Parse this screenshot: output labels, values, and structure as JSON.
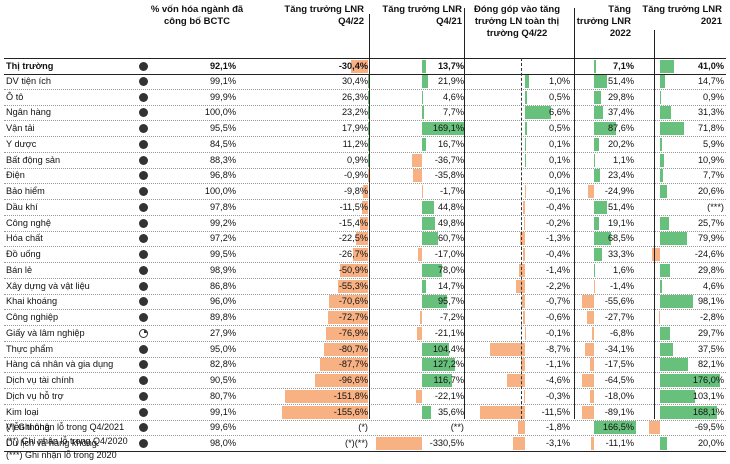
{
  "headers": {
    "market_cap": "% vốn hóa ngành đã công bố BCTC",
    "growth_q4_22": "Tăng trưởng LNR Q4/22",
    "growth_q4_21": "Tăng trưởng LNR Q4/21",
    "contribution": "Đóng góp vào tăng trưởng LN toàn thị trường Q4/22",
    "growth_2022": "Tăng trưởng LNR 2022",
    "growth_2021": "Tăng trưởng LNR 2021"
  },
  "rows": [
    {
      "name": "Thị trường",
      "cap": "92,1%",
      "dot": "full",
      "q422": "-30,4%",
      "q422v": -30.4,
      "q421": "13,7%",
      "q421v": 13.7,
      "contrib": "",
      "contribv": 0,
      "y22": "7,1%",
      "y22v": 7.1,
      "y21": "41,0%",
      "y21v": 41.0
    },
    {
      "name": "DV tiện ích",
      "cap": "99,1%",
      "dot": "full",
      "q422": "30,4%",
      "q422v": 30.4,
      "q421": "21,9%",
      "q421v": 21.9,
      "contrib": "1,0%",
      "contribv": 1.0,
      "y22": "51,4%",
      "y22v": 51.4,
      "y21": "14,7%",
      "y21v": 14.7
    },
    {
      "name": "Ô tô",
      "cap": "99,9%",
      "dot": "full",
      "q422": "26,3%",
      "q422v": 26.3,
      "q421": "4,6%",
      "q421v": 4.6,
      "contrib": "0,5%",
      "contribv": 0.5,
      "y22": "29,8%",
      "y22v": 29.8,
      "y21": "0,9%",
      "y21v": 0.9
    },
    {
      "name": "Ngân hàng",
      "cap": "100,0%",
      "dot": "full",
      "q422": "23,2%",
      "q422v": 23.2,
      "q421": "7,7%",
      "q421v": 7.7,
      "contrib": "6,6%",
      "contribv": 6.6,
      "y22": "37,4%",
      "y22v": 37.4,
      "y21": "31,3%",
      "y21v": 31.3
    },
    {
      "name": "Vận tải",
      "cap": "95,5%",
      "dot": "full",
      "q422": "17,9%",
      "q422v": 17.9,
      "q421": "169,1%",
      "q421v": 169.1,
      "contrib": "0,5%",
      "contribv": 0.5,
      "y22": "87,6%",
      "y22v": 87.6,
      "y21": "71,8%",
      "y21v": 71.8
    },
    {
      "name": "Y dược",
      "cap": "84,5%",
      "dot": "full",
      "q422": "11,2%",
      "q422v": 11.2,
      "q421": "16,7%",
      "q421v": 16.7,
      "contrib": "0,1%",
      "contribv": 0.1,
      "y22": "20,2%",
      "y22v": 20.2,
      "y21": "5,9%",
      "y21v": 5.9
    },
    {
      "name": "Bất động sản",
      "cap": "88,3%",
      "dot": "full",
      "q422": "0,9%",
      "q422v": 0.9,
      "q421": "-36,7%",
      "q421v": -36.7,
      "contrib": "0,1%",
      "contribv": 0.1,
      "y22": "1,1%",
      "y22v": 1.1,
      "y21": "10,9%",
      "y21v": 10.9
    },
    {
      "name": "Điện",
      "cap": "96,8%",
      "dot": "full",
      "q422": "-0,9%",
      "q422v": -0.9,
      "q421": "-35,8%",
      "q421v": -35.8,
      "contrib": "0,0%",
      "contribv": 0,
      "y22": "23,4%",
      "y22v": 23.4,
      "y21": "7,7%",
      "y21v": 7.7
    },
    {
      "name": "Bảo hiểm",
      "cap": "100,0%",
      "dot": "full",
      "q422": "-9,8%",
      "q422v": -9.8,
      "q421": "-1,7%",
      "q421v": -1.7,
      "contrib": "-0,1%",
      "contribv": -0.1,
      "y22": "-24,9%",
      "y22v": -24.9,
      "y21": "20,6%",
      "y21v": 20.6
    },
    {
      "name": "Dầu khí",
      "cap": "97,8%",
      "dot": "full",
      "q422": "-11,5%",
      "q422v": -11.5,
      "q421": "44,8%",
      "q421v": 44.8,
      "contrib": "-0,4%",
      "contribv": -0.4,
      "y22": "51,4%",
      "y22v": 51.4,
      "y21": "(***)",
      "y21v": 0
    },
    {
      "name": "Công nghệ",
      "cap": "99,2%",
      "dot": "full",
      "q422": "-15,4%",
      "q422v": -15.4,
      "q421": "49,8%",
      "q421v": 49.8,
      "contrib": "-0,2%",
      "contribv": -0.2,
      "y22": "19,1%",
      "y22v": 19.1,
      "y21": "25,7%",
      "y21v": 25.7
    },
    {
      "name": "Hóa chất",
      "cap": "97,2%",
      "dot": "full",
      "q422": "-22,5%",
      "q422v": -22.5,
      "q421": "60,7%",
      "q421v": 60.7,
      "contrib": "-1,3%",
      "contribv": -1.3,
      "y22": "68,5%",
      "y22v": 68.5,
      "y21": "79,9%",
      "y21v": 79.9
    },
    {
      "name": "Đồ uống",
      "cap": "99,5%",
      "dot": "full",
      "q422": "-26,7%",
      "q422v": -26.7,
      "q421": "-17,0%",
      "q421v": -17.0,
      "contrib": "-0,4%",
      "contribv": -0.4,
      "y22": "33,3%",
      "y22v": 33.3,
      "y21": "-24,6%",
      "y21v": -24.6
    },
    {
      "name": "Bán lẻ",
      "cap": "98,9%",
      "dot": "full",
      "q422": "-50,9%",
      "q422v": -50.9,
      "q421": "78,0%",
      "q421v": 78.0,
      "contrib": "-1,4%",
      "contribv": -1.4,
      "y22": "1,6%",
      "y22v": 1.6,
      "y21": "29,8%",
      "y21v": 29.8
    },
    {
      "name": "Xây dựng và vật liệu",
      "cap": "86,8%",
      "dot": "full",
      "q422": "-55,3%",
      "q422v": -55.3,
      "q421": "14,7%",
      "q421v": 14.7,
      "contrib": "-2,2%",
      "contribv": -2.2,
      "y22": "-1,4%",
      "y22v": -1.4,
      "y21": "4,6%",
      "y21v": 4.6
    },
    {
      "name": "Khai khoáng",
      "cap": "96,0%",
      "dot": "full",
      "q422": "-70,6%",
      "q422v": -70.6,
      "q421": "95,7%",
      "q421v": 95.7,
      "contrib": "-0,7%",
      "contribv": -0.7,
      "y22": "-55,6%",
      "y22v": -55.6,
      "y21": "98,1%",
      "y21v": 98.1
    },
    {
      "name": "Công nghiệp",
      "cap": "89,8%",
      "dot": "full",
      "q422": "-72,7%",
      "q422v": -72.7,
      "q421": "-7,2%",
      "q421v": -7.2,
      "contrib": "-0,6%",
      "contribv": -0.6,
      "y22": "-27,7%",
      "y22v": -27.7,
      "y21": "-2,8%",
      "y21v": -2.8
    },
    {
      "name": "Giấy và lâm nghiệp",
      "cap": "27,9%",
      "dot": "part",
      "q422": "-76,9%",
      "q422v": -76.9,
      "q421": "-21,1%",
      "q421v": -21.1,
      "contrib": "-0,1%",
      "contribv": -0.1,
      "y22": "-6,8%",
      "y22v": -6.8,
      "y21": "29,7%",
      "y21v": 29.7
    },
    {
      "name": "Thực phẩm",
      "cap": "95,0%",
      "dot": "full",
      "q422": "-80,7%",
      "q422v": -80.7,
      "q421": "104,4%",
      "q421v": 104.4,
      "contrib": "-8,7%",
      "contribv": -8.7,
      "y22": "-34,1%",
      "y22v": -34.1,
      "y21": "37,5%",
      "y21v": 37.5
    },
    {
      "name": "Hàng cá nhân và gia dụng",
      "cap": "82,8%",
      "dot": "full",
      "q422": "-87,7%",
      "q422v": -87.7,
      "q421": "127,2%",
      "q421v": 127.2,
      "contrib": "-1,1%",
      "contribv": -1.1,
      "y22": "-17,5%",
      "y22v": -17.5,
      "y21": "82,1%",
      "y21v": 82.1
    },
    {
      "name": "Dịch vụ tài chính",
      "cap": "90,5%",
      "dot": "full",
      "q422": "-96,6%",
      "q422v": -96.6,
      "q421": "116,7%",
      "q421v": 116.7,
      "contrib": "-4,6%",
      "contribv": -4.6,
      "y22": "-64,5%",
      "y22v": -64.5,
      "y21": "176,0%",
      "y21v": 176.0
    },
    {
      "name": "Dịch vụ hỗ trợ",
      "cap": "80,7%",
      "dot": "full",
      "q422": "-151,8%",
      "q422v": -151.8,
      "q421": "-22,1%",
      "q421v": -22.1,
      "contrib": "-0,3%",
      "contribv": -0.3,
      "y22": "-18,0%",
      "y22v": -18.0,
      "y21": "103,1%",
      "y21v": 103.1
    },
    {
      "name": "Kim loại",
      "cap": "99,1%",
      "dot": "full",
      "q422": "-155,6%",
      "q422v": -155.6,
      "q421": "35,6%",
      "q421v": 35.6,
      "contrib": "-11,5%",
      "contribv": -11.5,
      "y22": "-89,1%",
      "y22v": -89.1,
      "y21": "168,1%",
      "y21v": 168.1
    },
    {
      "name": "Viễn thông",
      "cap": "99,6%",
      "dot": "full",
      "q422": "(*)",
      "q422v": 0,
      "q421": "(**)",
      "q421v": 0,
      "contrib": "-1,8%",
      "contribv": -1.8,
      "y22": "166,5%",
      "y22v": 166.5,
      "y21": "-69,5%",
      "y21v": -69.5
    },
    {
      "name": "Du lịch và hàng không",
      "cap": "98,0%",
      "dot": "full",
      "q422": "(*)(**)",
      "q422v": 0,
      "q421": "-330,5%",
      "q421v": -330.5,
      "contrib": "-3,1%",
      "contribv": -3.1,
      "y22": "-11,1%",
      "y22v": -11.1,
      "y21": "20,0%",
      "y21v": 20.0
    }
  ],
  "footnotes": [
    "(*) Ghi nhận lỗ trong Q4/2021",
    "(**) Ghi nhận lỗ trong Q4/2020",
    "(***) Ghi nhận lỗ trong 2020"
  ],
  "colors": {
    "positive": "#67c17c",
    "negative": "#f7b183"
  }
}
